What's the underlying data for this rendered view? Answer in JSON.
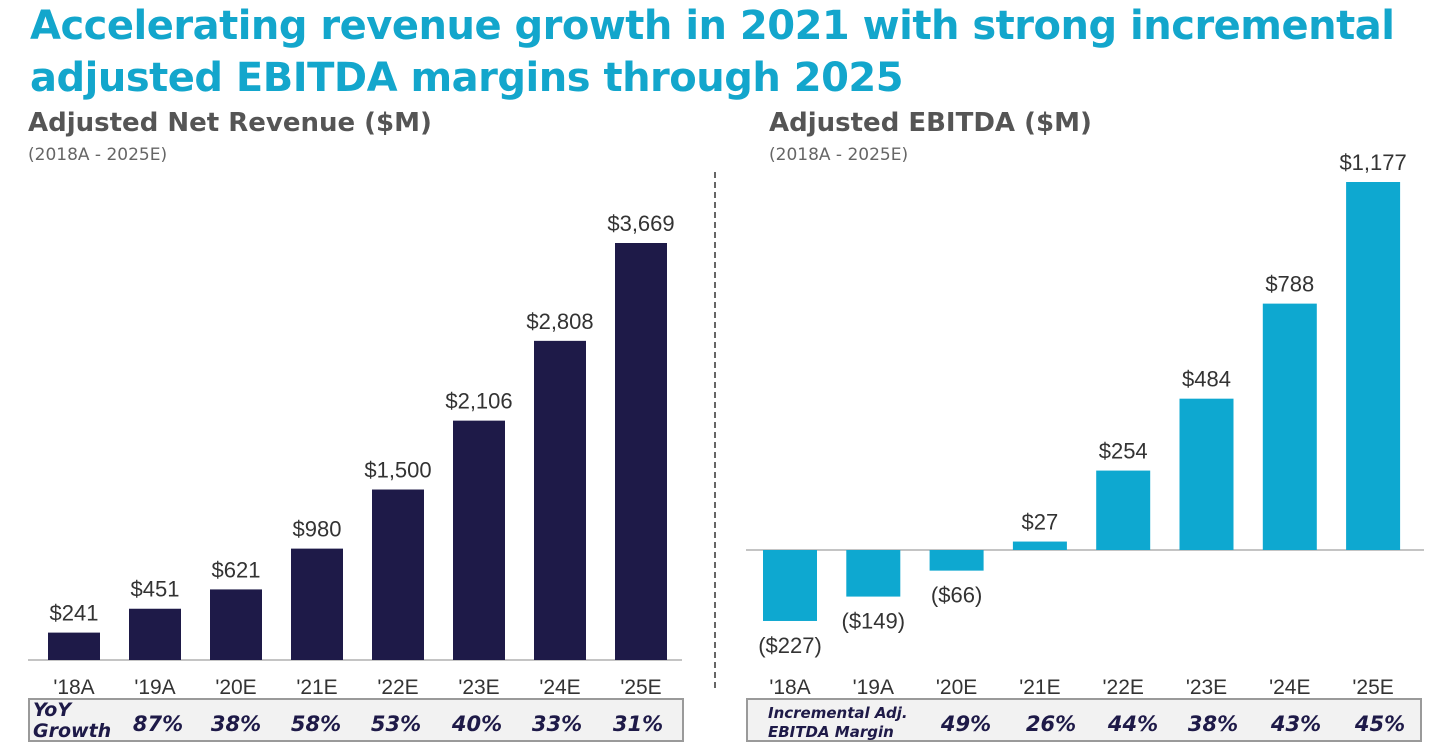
{
  "headline": {
    "line1": "Accelerating revenue growth in 2021 with strong incremental",
    "line2": "adjusted EBITDA margins through 2025"
  },
  "colors": {
    "title": "#13a6cc",
    "revenue_bar": "#1e1a48",
    "ebitda_bar": "#0ea8d0"
  },
  "chart_data": [
    {
      "type": "bar",
      "title": "Adjusted Net Revenue ($M)",
      "subtitle": "(2018A - 2025E)",
      "categories": [
        "'18A",
        "'19A",
        "'20E",
        "'21E",
        "'22E",
        "'23E",
        "'24E",
        "'25E"
      ],
      "values": [
        241,
        451,
        621,
        980,
        1500,
        2106,
        2808,
        3669
      ],
      "value_labels": [
        "$241",
        "$451",
        "$621",
        "$980",
        "$1,500",
        "$2,106",
        "$2,808",
        "$3,669"
      ],
      "ylim": [
        0,
        3669
      ],
      "grid": false,
      "footer": {
        "label_line1": "YoY",
        "label_line2": "Growth",
        "values": [
          "87%",
          "38%",
          "58%",
          "53%",
          "40%",
          "33%",
          "31%"
        ]
      }
    },
    {
      "type": "bar",
      "title": "Adjusted EBITDA ($M)",
      "subtitle": "(2018A - 2025E)",
      "categories": [
        "'18A",
        "'19A",
        "'20E",
        "'21E",
        "'22E",
        "'23E",
        "'24E",
        "'25E"
      ],
      "values": [
        -227,
        -149,
        -66,
        27,
        254,
        484,
        788,
        1177
      ],
      "value_labels": [
        "($227)",
        "($149)",
        "($66)",
        "$27",
        "$254",
        "$484",
        "$788",
        "$1,177"
      ],
      "ylim": [
        -227,
        1177
      ],
      "grid": false,
      "footer": {
        "label_line1": "Incremental Adj.",
        "label_line2": "EBITDA Margin",
        "values": [
          "49%",
          "26%",
          "44%",
          "38%",
          "43%",
          "45%"
        ]
      }
    }
  ]
}
